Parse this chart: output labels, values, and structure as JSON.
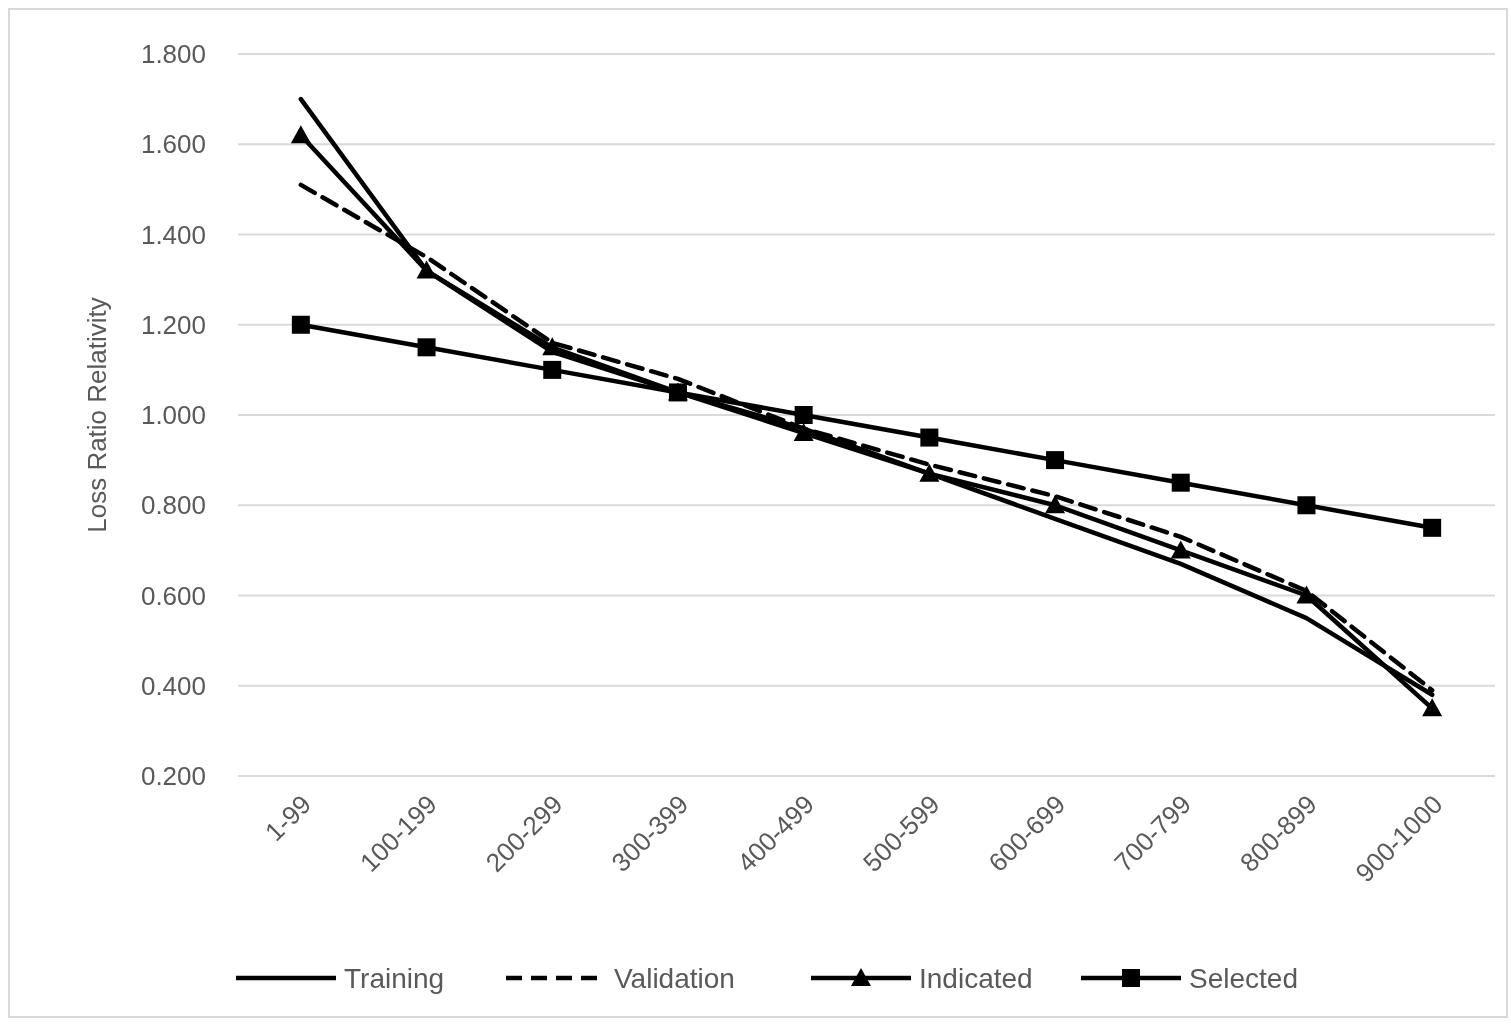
{
  "chart_data": {
    "type": "line",
    "ylabel": "Loss Ratio Relativity",
    "categories": [
      "1-99",
      "100-199",
      "200-299",
      "300-399",
      "400-499",
      "500-599",
      "600-699",
      "700-799",
      "800-899",
      "900-1000"
    ],
    "series": [
      {
        "name": "Training",
        "color": "#000000",
        "marker": "none",
        "line_style": "solid",
        "values": [
          1.7,
          1.32,
          1.14,
          1.05,
          0.97,
          0.87,
          0.77,
          0.67,
          0.55,
          0.38
        ]
      },
      {
        "name": "Validation",
        "color": "#000000",
        "marker": "none",
        "line_style": "dashed",
        "values": [
          1.51,
          1.35,
          1.16,
          1.08,
          0.97,
          0.89,
          0.82,
          0.73,
          0.61,
          0.39
        ]
      },
      {
        "name": "Indicated",
        "color": "#000000",
        "marker": "triangle",
        "line_style": "solid",
        "values": [
          1.62,
          1.32,
          1.15,
          1.05,
          0.96,
          0.87,
          0.8,
          0.7,
          0.6,
          0.35
        ]
      },
      {
        "name": "Selected",
        "color": "#000000",
        "marker": "square",
        "line_style": "solid",
        "values": [
          1.2,
          1.15,
          1.1,
          1.05,
          1.0,
          0.95,
          0.9,
          0.85,
          0.8,
          0.75
        ]
      }
    ],
    "ylim": [
      0.2,
      1.8
    ],
    "yticks": [
      {
        "value": 0.2,
        "label": "0.200"
      },
      {
        "value": 0.4,
        "label": "0.400"
      },
      {
        "value": 0.6,
        "label": "0.600"
      },
      {
        "value": 0.8,
        "label": "0.800"
      },
      {
        "value": 1.0,
        "label": "1.000"
      },
      {
        "value": 1.2,
        "label": "1.200"
      },
      {
        "value": 1.4,
        "label": "1.400"
      },
      {
        "value": 1.6,
        "label": "1.600"
      },
      {
        "value": 1.8,
        "label": "1.800"
      }
    ],
    "grid": "y",
    "legend": "bottom"
  }
}
